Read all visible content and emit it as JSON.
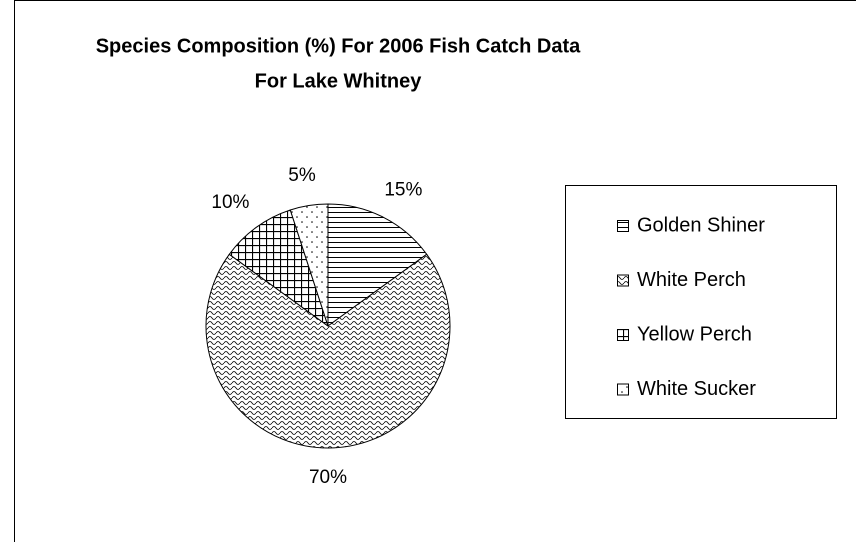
{
  "chart_data": {
    "type": "pie",
    "title": [
      "Species Composition (%) For 2006 Fish Catch Data",
      "For Lake Whitney"
    ],
    "categories": [
      "Golden Shiner",
      "White Perch",
      "Yellow Perch",
      "White Sucker"
    ],
    "values": [
      15,
      70,
      10,
      5
    ],
    "value_labels": [
      "15%",
      "70%",
      "10%",
      "5%"
    ],
    "patterns": [
      "horizontal",
      "wave",
      "grid",
      "dots"
    ],
    "color": "#000000",
    "legend": "right"
  }
}
